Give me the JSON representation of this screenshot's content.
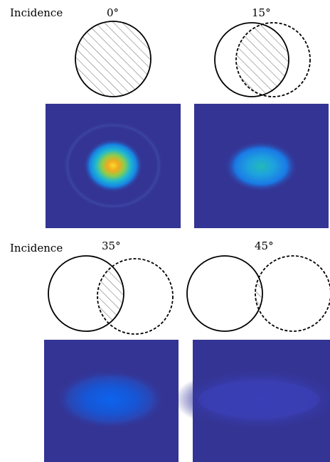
{
  "row1": {
    "label": "Incidence",
    "angles": [
      "0°",
      "15°"
    ]
  },
  "row2": {
    "label": "Incidence",
    "angles": [
      "35°",
      "45°"
    ]
  },
  "colors": {
    "background": "#343494",
    "peak_yellow": "#f5d62a",
    "peak_orange": "#f3a91d",
    "cyan": "#19b8d2",
    "blue": "#0f5ee8",
    "hatch": "#555555"
  }
}
